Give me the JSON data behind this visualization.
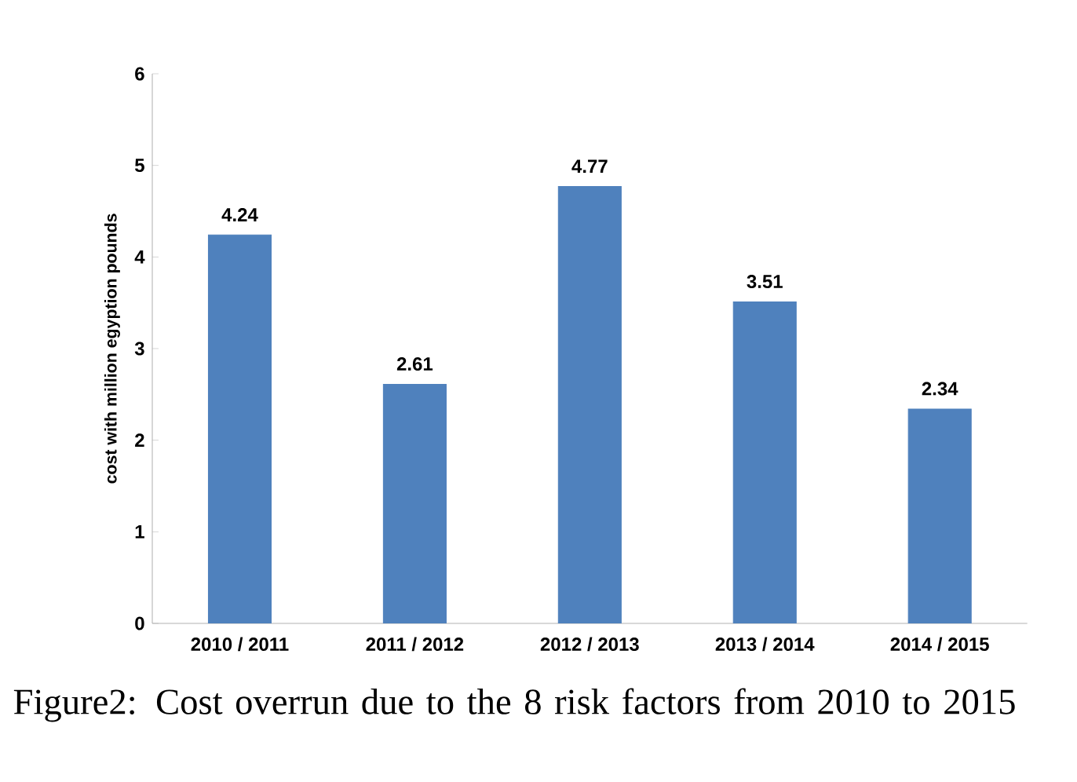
{
  "chart_data": {
    "type": "bar",
    "ylabel": "cost with million egyption pounds",
    "categories": [
      "2010 / 2011",
      "2011 / 2012",
      "2012 / 2013",
      "2013 / 2014",
      "2014 / 2015"
    ],
    "values": [
      4.24,
      2.61,
      4.77,
      3.51,
      2.34
    ],
    "color": "#4f81bd",
    "ylim": [
      0,
      6
    ],
    "yticks": [
      0,
      1,
      2,
      3,
      4,
      5,
      6
    ],
    "data_labels": true,
    "annotations": [
      "Figure2: Cost overrun due to the 8 risk factors from 2010 to 2015"
    ]
  }
}
